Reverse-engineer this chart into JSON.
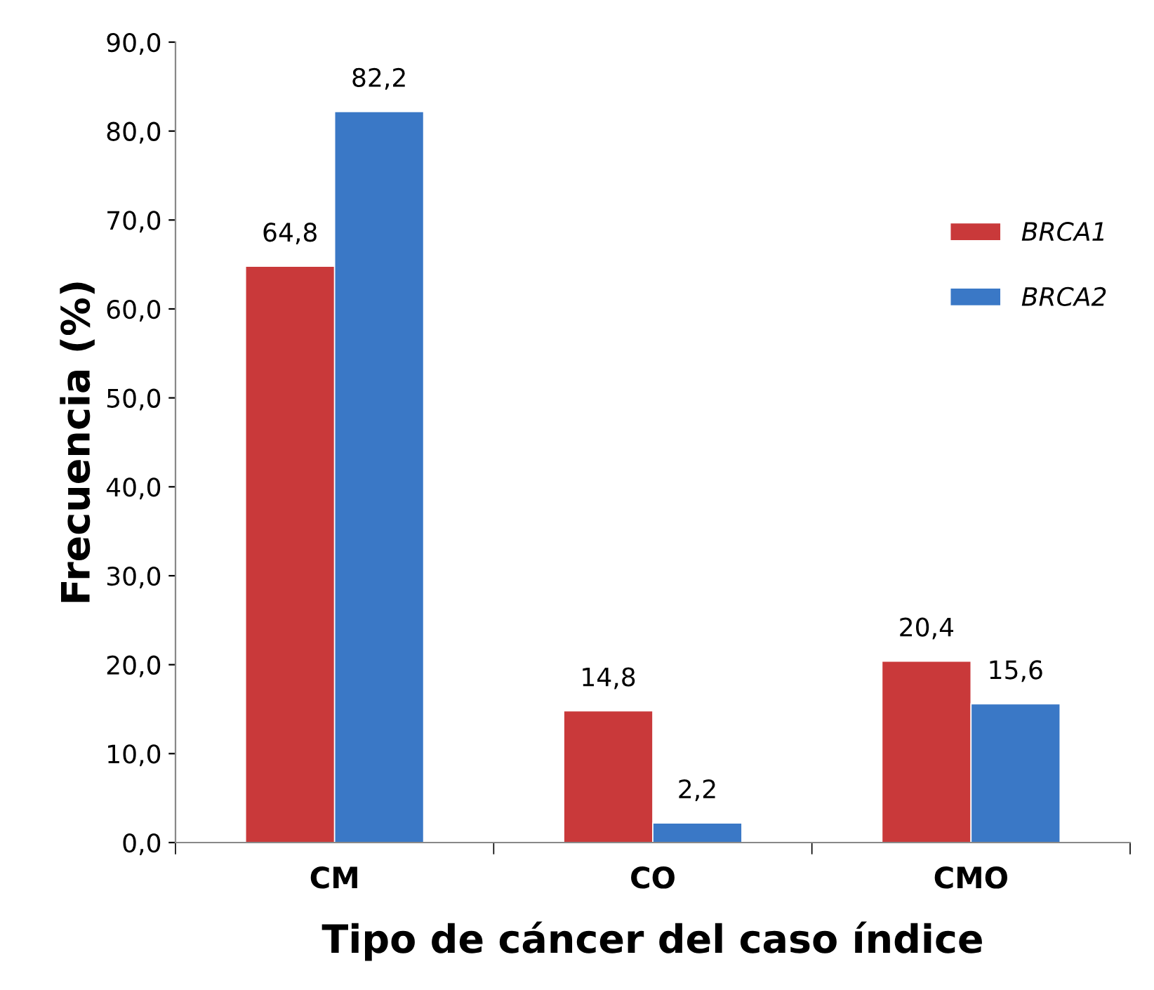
{
  "chart_data": {
    "type": "bar",
    "xlabel": "Tipo de cáncer del caso índice",
    "ylabel": "Frecuencia (%)",
    "categories": [
      "CM",
      "CO",
      "CMO"
    ],
    "series": [
      {
        "name": "BRCA1",
        "color": "#c9393a",
        "values": [
          64.8,
          14.8,
          20.4
        ],
        "value_labels": [
          "64,8",
          "14,8",
          "20,4"
        ]
      },
      {
        "name": "BRCA2",
        "color": "#3a78c6",
        "values": [
          82.2,
          2.2,
          15.6
        ],
        "value_labels": [
          "82,2",
          "2,2",
          "15,6"
        ]
      }
    ],
    "ylim": [
      0,
      90
    ],
    "yticks": [
      {
        "value": 0,
        "label": "0,0"
      },
      {
        "value": 10,
        "label": "10,0"
      },
      {
        "value": 20,
        "label": "20,0"
      },
      {
        "value": 30,
        "label": "30,0"
      },
      {
        "value": 40,
        "label": "40,0"
      },
      {
        "value": 50,
        "label": "50,0"
      },
      {
        "value": 60,
        "label": "60,0"
      },
      {
        "value": 70,
        "label": "70,0"
      },
      {
        "value": 80,
        "label": "80,0"
      },
      {
        "value": 90,
        "label": "90,0"
      }
    ],
    "grid": false,
    "legend": "right"
  }
}
